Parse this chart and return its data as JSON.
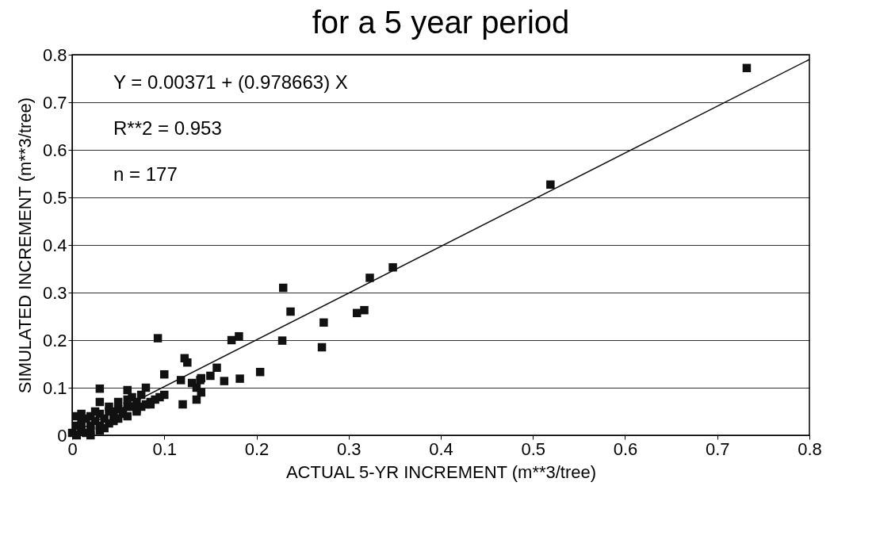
{
  "chart_data": {
    "type": "scatter",
    "title": "for a 5 year period",
    "xlabel": "ACTUAL 5-YR INCREMENT (m**3/tree)",
    "ylabel": "SIMULATED INCREMENT (m**3/tree)",
    "annotations": [
      "Y = 0.00371 + (0.978663) X",
      "R**2 = 0.953",
      "n = 177"
    ],
    "xlim": [
      0,
      0.8
    ],
    "ylim": [
      0,
      0.8
    ],
    "xticks": [
      0,
      0.1,
      0.2,
      0.3,
      0.4,
      0.5,
      0.6,
      0.7,
      0.8
    ],
    "yticks": [
      0,
      0.1,
      0.2,
      0.3,
      0.4,
      0.5,
      0.6,
      0.7,
      0.8
    ],
    "grid": "y",
    "marker": "square",
    "series": [
      {
        "color": "#111111",
        "x": [
          0.229,
          0.237,
          0.093,
          0.173,
          0.181,
          0.228,
          0.122,
          0.125,
          0.1,
          0.204,
          0.157,
          0.118,
          0.182,
          0.165,
          0.139,
          0.03,
          0.348,
          0.323,
          0.317,
          0.309,
          0.273,
          0.271,
          0.519,
          0.732,
          0.005,
          0.01,
          0.005,
          0.01,
          0.015,
          0.02,
          0.025,
          0.02,
          0.03,
          0.03,
          0.035,
          0.04,
          0.045,
          0.05,
          0.045,
          0.04,
          0.03,
          0.02,
          0.01,
          0.0,
          0.005,
          0.055,
          0.06,
          0.06,
          0.065,
          0.07,
          0.075,
          0.08,
          0.085,
          0.08,
          0.09,
          0.1,
          0.095,
          0.065,
          0.07,
          0.05,
          0.03,
          0.12,
          0.135,
          0.14,
          0.135,
          0.13,
          0.14,
          0.15,
          0.055,
          0.04,
          0.025,
          0.015,
          0.05,
          0.035,
          0.06,
          0.07,
          0.075,
          0.06,
          0.085,
          0.045,
          0.01,
          0.02
        ],
        "values": [
          0.31,
          0.26,
          0.204,
          0.2,
          0.208,
          0.199,
          0.162,
          0.153,
          0.128,
          0.133,
          0.142,
          0.116,
          0.119,
          0.114,
          0.116,
          0.098,
          0.353,
          0.331,
          0.263,
          0.257,
          0.237,
          0.185,
          0.527,
          0.772,
          0.04,
          0.03,
          0.02,
          0.01,
          0.005,
          0.02,
          0.03,
          0.04,
          0.045,
          0.02,
          0.035,
          0.05,
          0.04,
          0.055,
          0.03,
          0.025,
          0.01,
          0.01,
          0.02,
          0.005,
          0.0,
          0.045,
          0.06,
          0.095,
          0.08,
          0.07,
          0.06,
          0.065,
          0.07,
          0.1,
          0.075,
          0.085,
          0.08,
          0.06,
          0.055,
          0.07,
          0.07,
          0.065,
          0.075,
          0.09,
          0.1,
          0.11,
          0.12,
          0.125,
          0.05,
          0.06,
          0.05,
          0.035,
          0.035,
          0.015,
          0.04,
          0.05,
          0.085,
          0.075,
          0.065,
          0.05,
          0.045,
          0.0
        ]
      },
      {
        "type": "line",
        "marker": "none",
        "color": "#111111",
        "x": [
          0,
          0.8
        ],
        "values": [
          0.004,
          0.79
        ]
      }
    ]
  }
}
